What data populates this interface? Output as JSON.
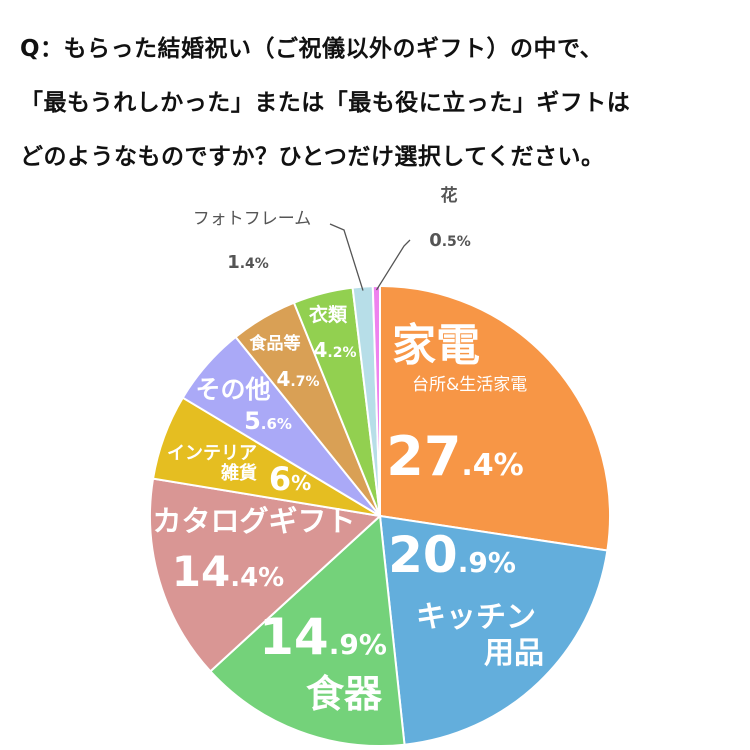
{
  "chart_data": {
    "type": "pie",
    "title_lines": [
      "Q：もらった結婚祝い（ご祝儀以外のギフト）の中で、",
      "「最もうれしかった」または「最も役に立った」ギフトは",
      "どのようなものですか？ひとつだけ選択してください。"
    ],
    "unit": "%",
    "slices": [
      {
        "name": "家電",
        "sublabel": "台所&生活家電",
        "value": 27.4,
        "int": "27",
        "dec": ".4%",
        "color": "#f79646"
      },
      {
        "name": "キッチン",
        "sublabel": "用品",
        "value": 20.9,
        "int": "20",
        "dec": ".9%",
        "color": "#63aedc"
      },
      {
        "name": "食器",
        "sublabel": "",
        "value": 14.9,
        "int": "14",
        "dec": ".9%",
        "color": "#74d27a"
      },
      {
        "name": "カタログギフト",
        "sublabel": "",
        "value": 14.4,
        "int": "14",
        "dec": ".4%",
        "color": "#d99694"
      },
      {
        "name": "インテリア",
        "sublabel": "雑貨",
        "value": 6.0,
        "int": "6",
        "dec": "%",
        "color": "#e5be21"
      },
      {
        "name": "その他",
        "sublabel": "",
        "value": 5.6,
        "int": "5",
        "dec": ".6%",
        "color": "#aaa9f7"
      },
      {
        "name": "食品等",
        "sublabel": "",
        "value": 4.7,
        "int": "4",
        "dec": ".7%",
        "color": "#d9a055"
      },
      {
        "name": "衣類",
        "sublabel": "",
        "value": 4.2,
        "int": "4",
        "dec": ".2%",
        "color": "#92d050"
      },
      {
        "name": "フォトフレーム",
        "sublabel": "",
        "value": 1.4,
        "int": "1",
        "dec": ".4%",
        "color": "#b7dee8"
      },
      {
        "name": "花",
        "sublabel": "",
        "value": 0.5,
        "int": "0",
        "dec": ".5%",
        "color": "#ee82ee"
      }
    ]
  }
}
